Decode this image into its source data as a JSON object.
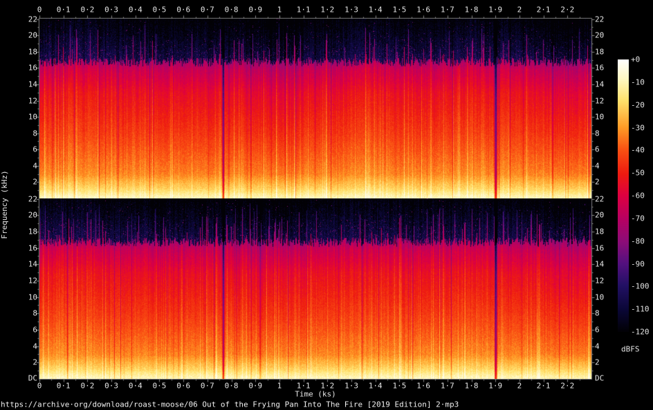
{
  "source_link": {
    "text": "https://archive·org/download/roast-moose/06 Out of the Frying Pan Into The Fire [2019 Edition] 2·mp3"
  },
  "axis_titles": {
    "time": "Time (ks)",
    "frequency": "Frequency (kHz)",
    "level_unit": "dBFS"
  },
  "chart_data": {
    "type": "heatmap",
    "subtype": "audio-spectrogram",
    "channels": [
      "channel-1-top",
      "channel-2-bottom"
    ],
    "time_axis": {
      "label": "Time (ks)",
      "min": 0,
      "max": 2.3,
      "major_step": 0.1,
      "minor_step": 0.05,
      "tick_labels": [
        "0",
        "0·1",
        "0·2",
        "0·3",
        "0·4",
        "0·5",
        "0·6",
        "0·7",
        "0·8",
        "0·9",
        "1",
        "1·1",
        "1·2",
        "1·3",
        "1·4",
        "1·5",
        "1·6",
        "1·7",
        "1·8",
        "1·9",
        "2",
        "2·1",
        "2·2"
      ],
      "tick_values": [
        0,
        0.1,
        0.2,
        0.3,
        0.4,
        0.5,
        0.6,
        0.7,
        0.8,
        0.9,
        1.0,
        1.1,
        1.2,
        1.3,
        1.4,
        1.5,
        1.6,
        1.7,
        1.8,
        1.9,
        2.0,
        2.1,
        2.2
      ]
    },
    "freq_axis": {
      "label": "Frequency (kHz)",
      "max_khz": 22.05,
      "major_step_khz": 2,
      "tick_labels": [
        "22",
        "20",
        "18",
        "16",
        "14",
        "12",
        "10",
        "8",
        "6",
        "4",
        "2"
      ],
      "tick_values": [
        22,
        20,
        18,
        16,
        14,
        12,
        10,
        8,
        6,
        4,
        2
      ],
      "dc_label": "DC"
    },
    "level_axis": {
      "label": "dBFS",
      "max_db": 0,
      "min_db": -120,
      "step_db": 10,
      "tick_labels": [
        "+0",
        "-10",
        "-20",
        "-30",
        "-40",
        "-50",
        "-60",
        "-70",
        "-80",
        "-90",
        "-100",
        "-110",
        "-120"
      ]
    },
    "palette": [
      {
        "at": 0.0,
        "color": "#ffffff"
      },
      {
        "at": 0.07,
        "color": "#fff8c4"
      },
      {
        "at": 0.15,
        "color": "#ffe26d"
      },
      {
        "at": 0.25,
        "color": "#ff9b26"
      },
      {
        "at": 0.33,
        "color": "#fa5213"
      },
      {
        "at": 0.42,
        "color": "#ee1b10"
      },
      {
        "at": 0.5,
        "color": "#de0041"
      },
      {
        "at": 0.58,
        "color": "#ba0060"
      },
      {
        "at": 0.67,
        "color": "#8c0d78"
      },
      {
        "at": 0.75,
        "color": "#53117f"
      },
      {
        "at": 0.83,
        "color": "#221064"
      },
      {
        "at": 0.92,
        "color": "#0a0736"
      },
      {
        "at": 1.0,
        "color": "#020105"
      }
    ],
    "render": {
      "freq_band_levels_dbfs": [
        [
          0,
          0.35,
          -9,
          -11
        ],
        [
          0.35,
          1.2,
          -11,
          -20
        ],
        [
          1.2,
          3,
          -20,
          -33
        ],
        [
          3,
          8,
          -33,
          -45
        ],
        [
          8,
          13,
          -45,
          -55
        ],
        [
          13,
          15.8,
          -55,
          -66
        ]
      ],
      "mp3_cutoff_khz": 16.2,
      "shoulder_db_per_khz": 7,
      "noise_floor_db": -104,
      "quiet_gaps": [
        {
          "time_ks": 0.765,
          "half_width_cols": 2.0,
          "extra_db": -46
        },
        {
          "time_ks": 0.88,
          "half_width_cols": 1.5,
          "extra_db": -13
        },
        {
          "time_ks": 1.9,
          "half_width_cols": 2.5,
          "extra_db": -55
        }
      ],
      "transient_probability": 0.13,
      "quiet_probability": 0.05,
      "channel_seeds": [
        101,
        202
      ]
    },
    "frame_color": "#8a8a8a",
    "text_color": "#e4e4e4"
  }
}
